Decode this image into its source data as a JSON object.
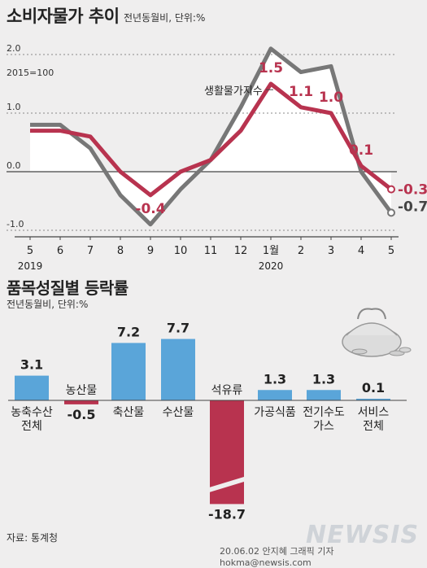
{
  "top_chart": {
    "title": "소비자물가 추이",
    "subtitle": "전년동월비, 단위:%",
    "base_note": "2015=100",
    "series_label": "생활물가지수",
    "year_labels": [
      "2019",
      "2020"
    ]
  },
  "bottom_chart": {
    "title": "품목성질별 등락률",
    "subtitle": "전년동월비, 단위:%"
  },
  "source": "자료: 통계청",
  "credit": "20.06.02 안지혜 그래픽 기자 hokma@newsis.com",
  "logo": "NEWSIS",
  "colors": {
    "cpi": "#777777",
    "living": "#b8334f",
    "bar_blue": "#5aa5d9",
    "bar_red": "#b8334f"
  },
  "chart_data": [
    {
      "type": "line",
      "title": "소비자물가 추이",
      "x": [
        "5",
        "6",
        "7",
        "8",
        "9",
        "10",
        "11",
        "12",
        "1월",
        "2",
        "3",
        "4",
        "5"
      ],
      "ylim": [
        -1.0,
        2.0
      ],
      "yticks": [
        "2.0",
        "1.0",
        "0.0",
        "-1.0"
      ],
      "series": [
        {
          "name": "",
          "values": [
            0.8,
            0.8,
            0.4,
            -0.4,
            -0.9,
            -0.3,
            0.2,
            1.1,
            2.1,
            1.7,
            1.8,
            0.0,
            -0.7
          ],
          "end_label": "-0.7"
        },
        {
          "name": "생활물가지수",
          "values": [
            0.7,
            0.7,
            0.6,
            0.0,
            -0.4,
            0.0,
            0.2,
            0.7,
            1.5,
            1.1,
            1.0,
            0.1,
            -0.3
          ],
          "data_labels": {
            "4": "-0.4",
            "8": "1.5",
            "9": "1.1",
            "10": "1.0",
            "11": "0.1",
            "12": "-0.3"
          }
        }
      ]
    },
    {
      "type": "bar",
      "title": "품목성질별 등락률",
      "categories": [
        "농축수산 전체",
        "농산물",
        "축산물",
        "수산물",
        "석유류",
        "가공식품",
        "전기수도 가스",
        "서비스 전체"
      ],
      "values": [
        3.1,
        -0.5,
        7.2,
        7.7,
        -18.7,
        1.3,
        1.3,
        0.1
      ],
      "value_labels": [
        "3.1",
        "-0.5",
        "7.2",
        "7.7",
        "-18.7",
        "1.3",
        "1.3",
        "0.1"
      ]
    }
  ]
}
